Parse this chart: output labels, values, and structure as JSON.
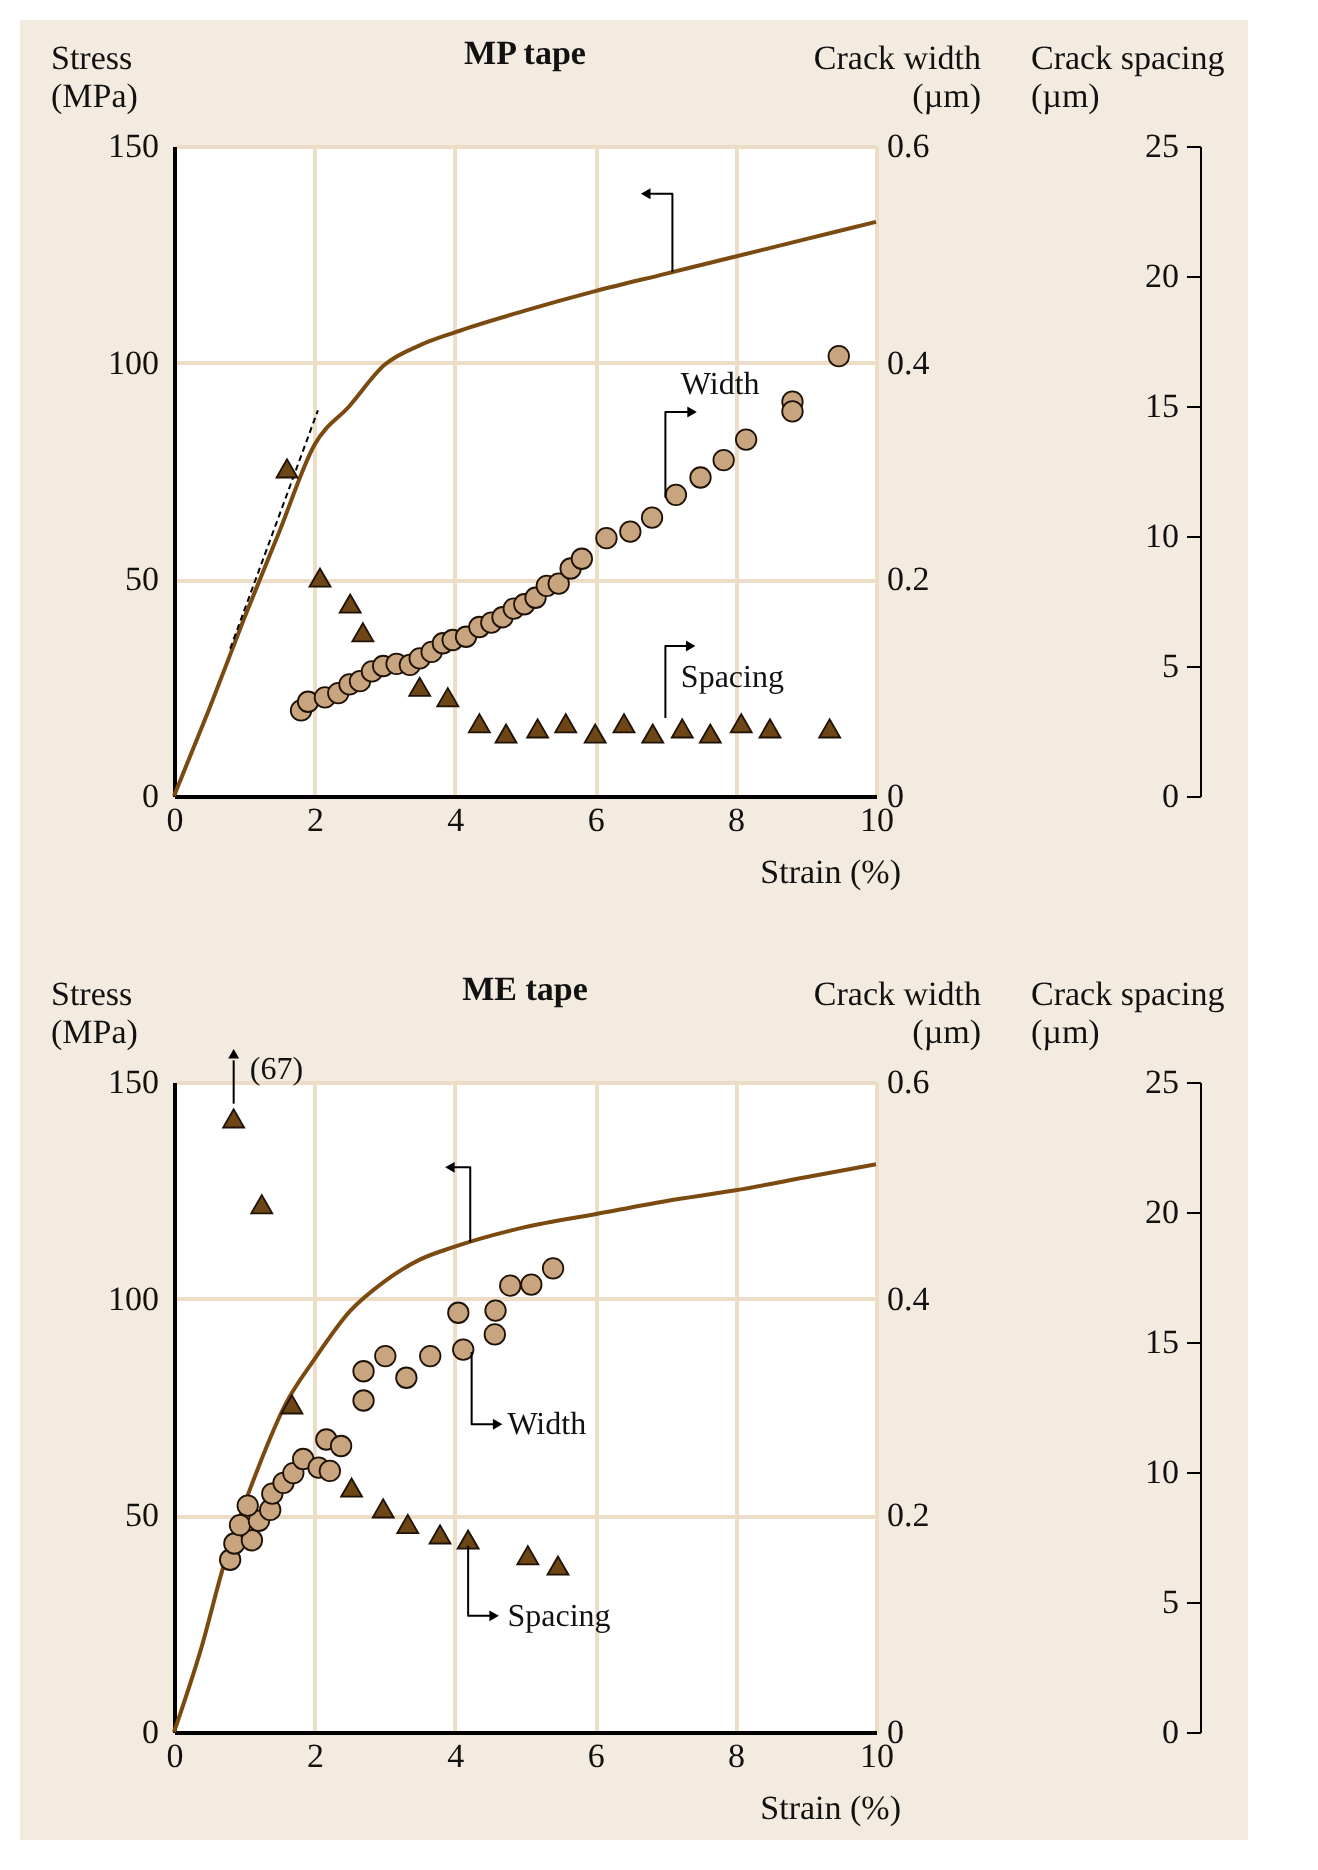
{
  "chart_data": [
    {
      "type": "line",
      "title": "MP tape",
      "xlabel": "Strain (%)",
      "ylabel": "Stress (MPa)",
      "y2label": "Crack width (µm)",
      "y3label": "Crack spacing (µm)",
      "xlim": [
        0,
        10
      ],
      "xticks": [
        0,
        2,
        4,
        6,
        8,
        10
      ],
      "ylim": [
        0,
        150
      ],
      "yticks": [
        0,
        50,
        100,
        150
      ],
      "y2lim": [
        0,
        0.6
      ],
      "y2ticks": [
        0,
        0.2,
        0.4,
        0.6
      ],
      "y3lim": [
        0,
        25
      ],
      "y3ticks": [
        0,
        5,
        10,
        15,
        20,
        25
      ],
      "grid": true,
      "series": [
        {
          "type": "line",
          "color": "#7b4a10",
          "x": [
            0,
            0.5,
            1,
            1.5,
            2,
            2.5,
            3,
            3.5,
            4,
            5,
            6,
            7,
            8,
            9,
            10
          ],
          "values": [
            0,
            20,
            41,
            61,
            81,
            90,
            99.5,
            104,
            107,
            112,
            116.5,
            120.5,
            124.5,
            128.5,
            132.5
          ]
        },
        {
          "type": "line",
          "line_style": "dashed",
          "color": "#000000",
          "x": [
            0.8,
            2.05
          ],
          "values": [
            34,
            89
          ]
        },
        {
          "name": "Width",
          "type": "scatter",
          "axis": "y2",
          "marker": "circle",
          "color": "#c9a57f",
          "x": [
            1.81,
            1.91,
            2.15,
            2.34,
            2.5,
            2.65,
            2.82,
            2.98,
            3.17,
            3.36,
            3.5,
            3.67,
            3.83,
            3.97,
            4.16,
            4.35,
            4.52,
            4.68,
            4.84,
            4.99,
            5.15,
            5.31,
            5.48,
            5.65,
            5.81,
            6.16,
            6.5,
            6.81,
            7.15,
            7.5,
            7.83,
            8.15,
            8.81,
            8.81,
            9.47
          ],
          "values": [
            0.079,
            0.087,
            0.091,
            0.095,
            0.103,
            0.106,
            0.115,
            0.12,
            0.122,
            0.121,
            0.127,
            0.133,
            0.141,
            0.144,
            0.147,
            0.156,
            0.16,
            0.165,
            0.173,
            0.177,
            0.183,
            0.194,
            0.196,
            0.21,
            0.219,
            0.238,
            0.244,
            0.257,
            0.278,
            0.294,
            0.31,
            0.329,
            0.364,
            0.355,
            0.406
          ]
        },
        {
          "name": "Spacing",
          "type": "scatter",
          "axis": "y3",
          "marker": "triangle",
          "color": "#6e4514",
          "x": [
            1.61,
            2.08,
            2.51,
            2.69,
            3.5,
            3.9,
            4.35,
            4.73,
            5.18,
            5.58,
            6.0,
            6.41,
            6.82,
            7.24,
            7.64,
            8.08,
            8.49,
            9.34
          ],
          "values": [
            12.6,
            8.4,
            7.4,
            6.3,
            4.2,
            3.8,
            2.8,
            2.4,
            2.6,
            2.8,
            2.4,
            2.8,
            2.4,
            2.6,
            2.4,
            2.8,
            2.6,
            2.6
          ]
        }
      ]
    },
    {
      "type": "line",
      "title": "ME tape",
      "xlabel": "Strain (%)",
      "ylabel": "Stress (MPa)",
      "y2label": "Crack width (µm)",
      "y3label": "Crack spacing (µm)",
      "xlim": [
        0,
        10
      ],
      "xticks": [
        0,
        2,
        4,
        6,
        8,
        10
      ],
      "ylim": [
        0,
        150
      ],
      "yticks": [
        0,
        50,
        100,
        150
      ],
      "y2lim": [
        0,
        0.6
      ],
      "y2ticks": [
        0,
        0.2,
        0.4,
        0.6
      ],
      "y3lim": [
        0,
        25
      ],
      "y3ticks": [
        0,
        5,
        10,
        15,
        20,
        25
      ],
      "grid": true,
      "annotations": [
        "(67)"
      ],
      "series": [
        {
          "type": "line",
          "color": "#7b4a10",
          "x": [
            0,
            0.4,
            0.7,
            1.2,
            1.6,
            2,
            2.5,
            3,
            3.5,
            4,
            5,
            6,
            7,
            8,
            9,
            10
          ],
          "values": [
            0,
            20,
            38,
            61,
            76,
            86,
            97,
            104,
            109,
            112,
            116.5,
            119.5,
            122.5,
            125,
            128,
            131
          ]
        },
        {
          "name": "Width",
          "type": "scatter",
          "axis": "y2",
          "marker": "circle",
          "color": "#c9a57f",
          "x": [
            0.8,
            0.86,
            1.11,
            0.94,
            1.21,
            1.05,
            1.37,
            1.4,
            1.56,
            1.7,
            1.84,
            2.06,
            2.22,
            2.17,
            2.38,
            2.7,
            2.7,
            3.01,
            3.31,
            3.65,
            4.12,
            4.05,
            4.58,
            4.57,
            4.79,
            5.09,
            5.4
          ],
          "values": [
            0.159,
            0.174,
            0.177,
            0.191,
            0.195,
            0.209,
            0.205,
            0.22,
            0.23,
            0.239,
            0.252,
            0.244,
            0.241,
            0.27,
            0.264,
            0.306,
            0.333,
            0.347,
            0.327,
            0.347,
            0.353,
            0.387,
            0.389,
            0.367,
            0.412,
            0.413,
            0.428
          ]
        },
        {
          "name": "Spacing",
          "type": "scatter",
          "axis": "y3",
          "marker": "triangle",
          "color": "#6e4514",
          "x": [
            0.85,
            1.25,
            1.68,
            2.53,
            2.98,
            3.33,
            3.79,
            4.19,
            5.04,
            5.47
          ],
          "values": [
            23.6,
            20.3,
            12.6,
            9.4,
            8.6,
            8.0,
            7.6,
            7.4,
            6.8,
            6.4
          ]
        }
      ]
    }
  ]
}
